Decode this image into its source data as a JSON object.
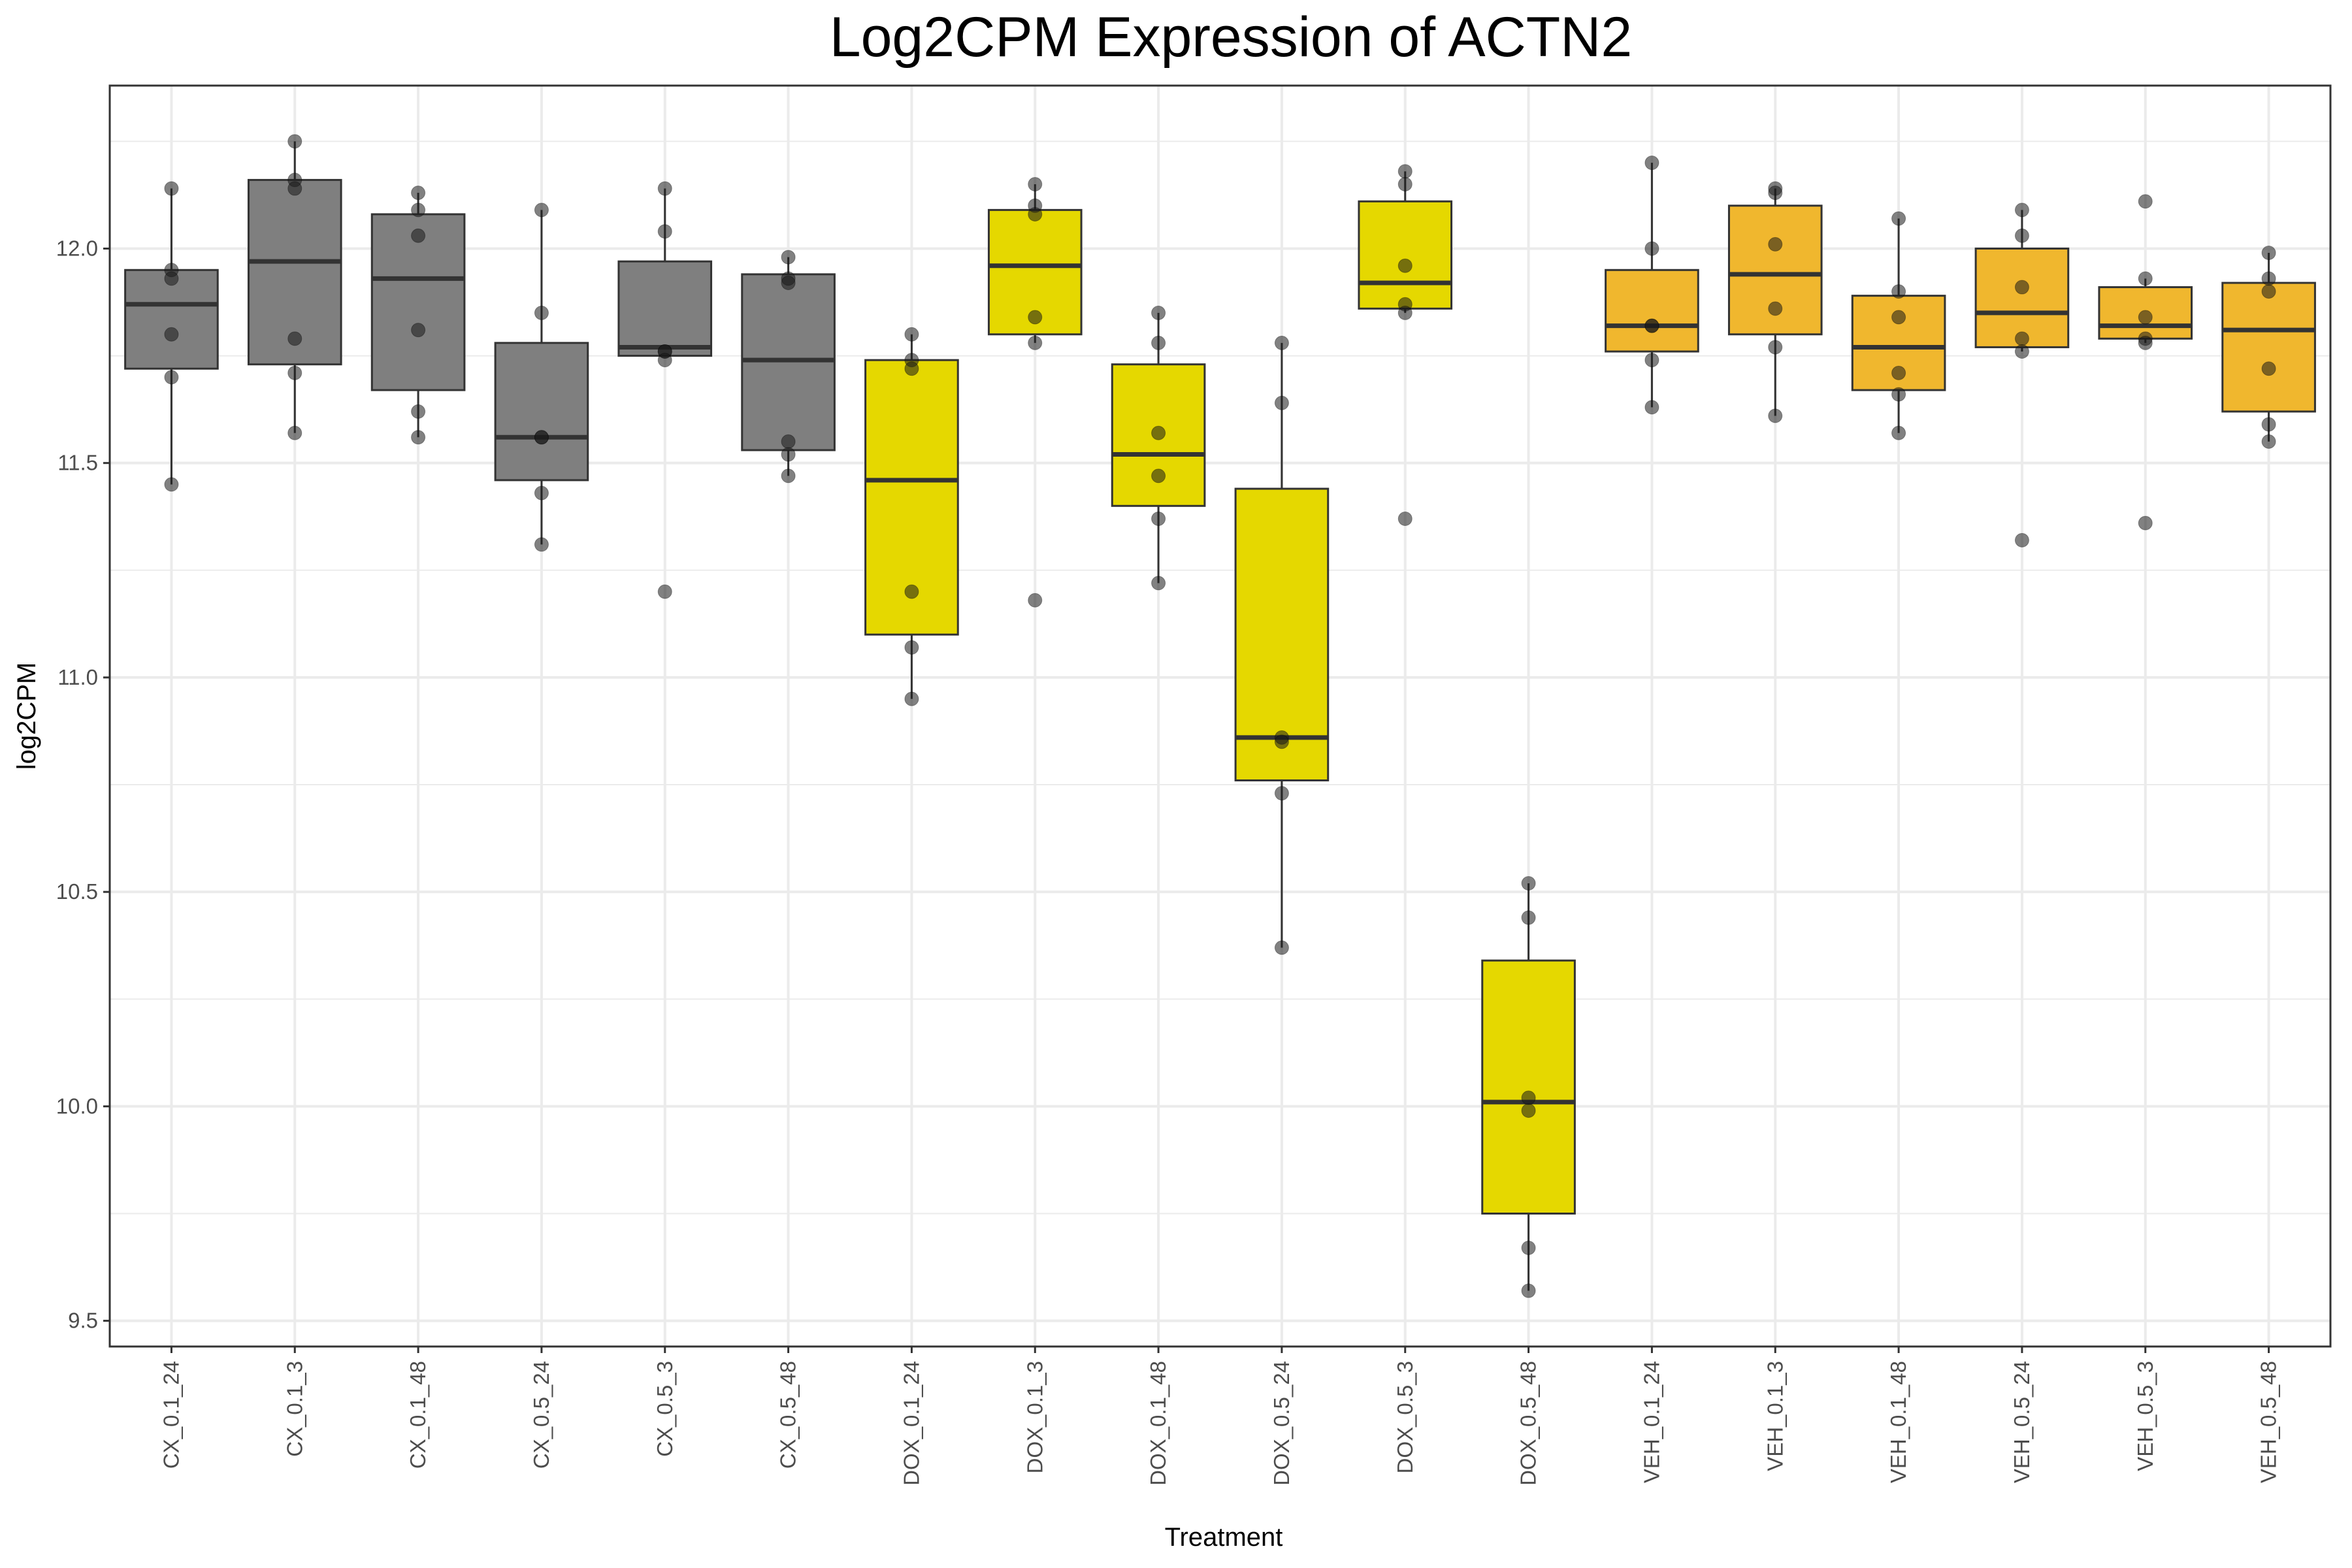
{
  "chart_data": {
    "type": "box",
    "title": "Log2CPM Expression of ACTN2",
    "xlabel": "Treatment",
    "ylabel": "log2CPM",
    "ylim": [
      9.44,
      12.38
    ],
    "yticks": [
      9.5,
      10.0,
      10.5,
      11.0,
      11.5,
      12.0
    ],
    "ytick_labels": [
      "9.5",
      "10.0",
      "10.5",
      "11.0",
      "11.5",
      "12.0"
    ],
    "grid": true,
    "legend": "none",
    "colors": {
      "CX": "#7f7f7f",
      "DOX": "#e5d800",
      "VEH": "#f0b72e",
      "panel_border": "#333333",
      "grid": "#ebebeb",
      "point": "#1a1a1a"
    },
    "categories": [
      "CX_0.1_24",
      "CX_0.1_3",
      "CX_0.1_48",
      "CX_0.5_24",
      "CX_0.5_3",
      "CX_0.5_48",
      "DOX_0.1_24",
      "DOX_0.1_3",
      "DOX_0.1_48",
      "DOX_0.5_24",
      "DOX_0.5_3",
      "DOX_0.5_48",
      "VEH_0.1_24",
      "VEH_0.1_3",
      "VEH_0.1_48",
      "VEH_0.5_24",
      "VEH_0.5_3",
      "VEH_0.5_48"
    ],
    "groups": [
      "CX",
      "CX",
      "CX",
      "CX",
      "CX",
      "CX",
      "DOX",
      "DOX",
      "DOX",
      "DOX",
      "DOX",
      "DOX",
      "VEH",
      "VEH",
      "VEH",
      "VEH",
      "VEH",
      "VEH"
    ],
    "boxes": [
      {
        "q1": 11.72,
        "median": 11.87,
        "q3": 11.95,
        "whisker_low": 11.45,
        "whisker_high": 12.14
      },
      {
        "q1": 11.73,
        "median": 11.97,
        "q3": 12.16,
        "whisker_low": 11.57,
        "whisker_high": 12.25
      },
      {
        "q1": 11.67,
        "median": 11.93,
        "q3": 12.08,
        "whisker_low": 11.56,
        "whisker_high": 12.13
      },
      {
        "q1": 11.46,
        "median": 11.56,
        "q3": 11.78,
        "whisker_low": 11.31,
        "whisker_high": 12.09
      },
      {
        "q1": 11.75,
        "median": 11.77,
        "q3": 11.97,
        "whisker_low": 11.75,
        "whisker_high": 12.14
      },
      {
        "q1": 11.53,
        "median": 11.74,
        "q3": 11.94,
        "whisker_low": 11.47,
        "whisker_high": 11.98
      },
      {
        "q1": 11.1,
        "median": 11.46,
        "q3": 11.74,
        "whisker_low": 10.95,
        "whisker_high": 11.8
      },
      {
        "q1": 11.8,
        "median": 11.96,
        "q3": 12.09,
        "whisker_low": 11.78,
        "whisker_high": 12.15
      },
      {
        "q1": 11.4,
        "median": 11.52,
        "q3": 11.73,
        "whisker_low": 11.22,
        "whisker_high": 11.85
      },
      {
        "q1": 10.76,
        "median": 10.86,
        "q3": 11.44,
        "whisker_low": 10.37,
        "whisker_high": 11.78
      },
      {
        "q1": 11.86,
        "median": 11.92,
        "q3": 12.11,
        "whisker_low": 11.85,
        "whisker_high": 12.18
      },
      {
        "q1": 9.75,
        "median": 10.01,
        "q3": 10.34,
        "whisker_low": 9.57,
        "whisker_high": 10.52
      },
      {
        "q1": 11.76,
        "median": 11.82,
        "q3": 11.95,
        "whisker_low": 11.63,
        "whisker_high": 12.2
      },
      {
        "q1": 11.8,
        "median": 11.94,
        "q3": 12.1,
        "whisker_low": 11.61,
        "whisker_high": 12.14
      },
      {
        "q1": 11.67,
        "median": 11.77,
        "q3": 11.89,
        "whisker_low": 11.57,
        "whisker_high": 12.07
      },
      {
        "q1": 11.77,
        "median": 11.85,
        "q3": 12.0,
        "whisker_low": 11.76,
        "whisker_high": 12.09
      },
      {
        "q1": 11.79,
        "median": 11.82,
        "q3": 11.91,
        "whisker_low": 11.78,
        "whisker_high": 11.93
      },
      {
        "q1": 11.62,
        "median": 11.81,
        "q3": 11.92,
        "whisker_low": 11.55,
        "whisker_high": 11.99
      }
    ],
    "points": [
      [
        12.14,
        11.95,
        11.93,
        11.8,
        11.7,
        11.45
      ],
      [
        12.25,
        12.16,
        12.14,
        11.79,
        11.71,
        11.57
      ],
      [
        12.13,
        12.09,
        12.03,
        11.81,
        11.62,
        11.56
      ],
      [
        12.09,
        11.85,
        11.56,
        11.56,
        11.43,
        11.31
      ],
      [
        12.14,
        12.04,
        11.76,
        11.76,
        11.74,
        11.2
      ],
      [
        11.98,
        11.93,
        11.92,
        11.55,
        11.52,
        11.47
      ],
      [
        11.8,
        11.74,
        11.72,
        11.2,
        11.07,
        10.95
      ],
      [
        12.15,
        12.1,
        12.08,
        11.84,
        11.78,
        11.18
      ],
      [
        11.85,
        11.78,
        11.57,
        11.47,
        11.37,
        11.22
      ],
      [
        11.78,
        11.64,
        10.86,
        10.85,
        10.73,
        10.37
      ],
      [
        12.18,
        12.15,
        11.96,
        11.87,
        11.85,
        11.37
      ],
      [
        10.52,
        10.44,
        10.02,
        9.99,
        9.67,
        9.57
      ],
      [
        12.2,
        12.0,
        11.82,
        11.82,
        11.74,
        11.63
      ],
      [
        12.14,
        12.13,
        12.01,
        11.86,
        11.77,
        11.61
      ],
      [
        12.07,
        11.9,
        11.84,
        11.71,
        11.66,
        11.57
      ],
      [
        12.09,
        12.03,
        11.91,
        11.79,
        11.76,
        11.32
      ],
      [
        12.11,
        11.93,
        11.84,
        11.79,
        11.78,
        11.36
      ],
      [
        11.99,
        11.93,
        11.9,
        11.72,
        11.59,
        11.55
      ]
    ]
  }
}
